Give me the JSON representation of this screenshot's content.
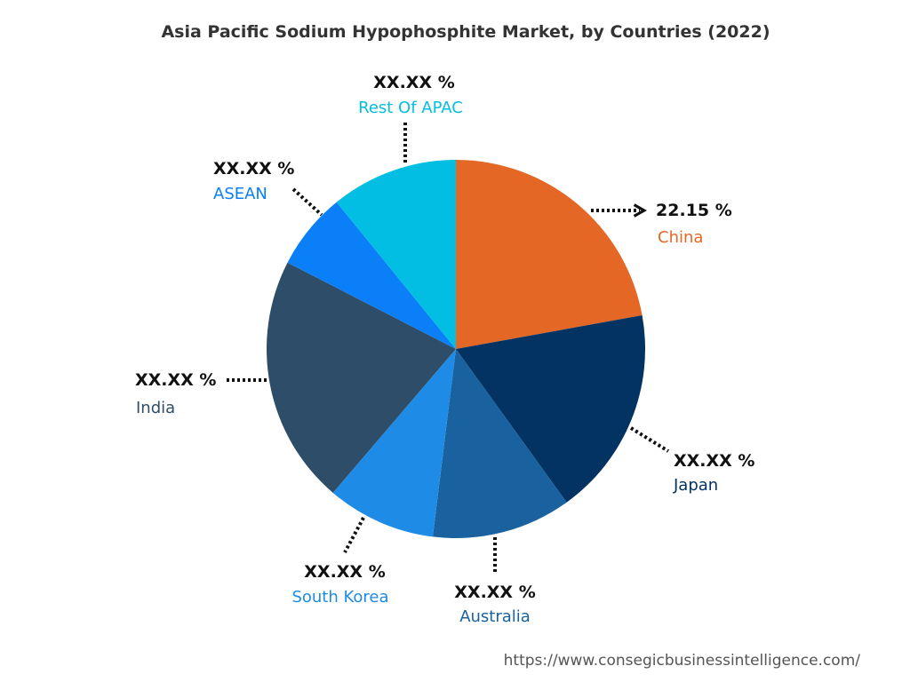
{
  "chart_data": {
    "type": "pie",
    "title": "Asia Pacific Sodium Hypophosphite Market, by Countries (2022)",
    "categories": [
      "China",
      "Japan",
      "Australia",
      "South Korea",
      "India",
      "ASEAN",
      "Rest Of APAC"
    ],
    "values": [
      22.15,
      17.9,
      11.9,
      9.3,
      21.3,
      6.6,
      10.85
    ],
    "value_labels": [
      "22.15 %",
      "XX.XX %",
      "XX.XX %",
      "XX.XX %",
      "XX.XX %",
      "XX.XX %",
      "XX.XX %"
    ],
    "colors": [
      "#E46726",
      "#033363",
      "#1A629F",
      "#1E8CE6",
      "#2E4D68",
      "#0A7FF7",
      "#02BEE3"
    ],
    "label_colors": [
      "#E46726",
      "#033363",
      "#1A629F",
      "#1E8CE6",
      "#2E4D68",
      "#0A7FF7",
      "#02BEE3"
    ]
  },
  "source_url": "https://www.consegicbusinessintelligence.com/"
}
